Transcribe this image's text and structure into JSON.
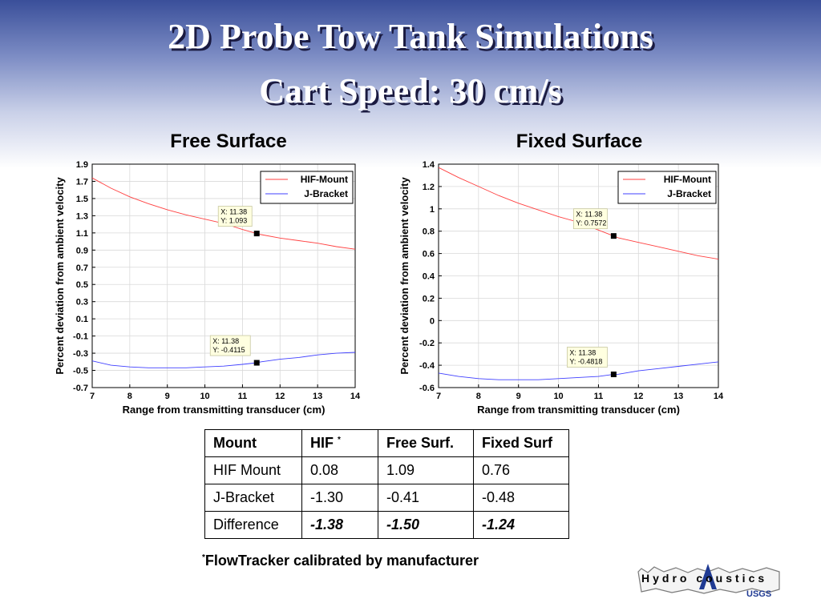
{
  "slide": {
    "title_line1": "2D Probe Tow Tank Simulations",
    "title_line2": "Cart Speed: 30 cm/s"
  },
  "chart_data": [
    {
      "type": "line",
      "title": "Free Surface",
      "xlabel": "Range from transmitting transducer (cm)",
      "ylabel": "Percent deviation from ambient velocity",
      "xlim": [
        7,
        14
      ],
      "ylim": [
        -0.7,
        1.9
      ],
      "xticks": [
        7,
        8,
        9,
        10,
        11,
        12,
        13,
        14
      ],
      "yticks": [
        -0.7,
        -0.5,
        -0.3,
        -0.1,
        0.1,
        0.3,
        0.5,
        0.7,
        0.9,
        1.1,
        1.3,
        1.5,
        1.7,
        1.9
      ],
      "ytick_labels": [
        "-0.7",
        "-0.5",
        "-0.3",
        "-0.1",
        "0.1",
        "0.3",
        "0.5",
        "0.7",
        "0.9",
        "1.1",
        "1.3",
        "1.5",
        "1.7",
        "1.9"
      ],
      "grid": true,
      "legend": "top-right",
      "series": [
        {
          "name": "HIF-Mount",
          "color": "#ff4040",
          "x": [
            7,
            7.5,
            8,
            8.5,
            9,
            9.5,
            10,
            10.5,
            11,
            11.38,
            11.5,
            12,
            12.5,
            13,
            13.5,
            14
          ],
          "y": [
            1.74,
            1.62,
            1.52,
            1.44,
            1.37,
            1.31,
            1.26,
            1.21,
            1.14,
            1.093,
            1.08,
            1.04,
            1.01,
            0.98,
            0.94,
            0.91
          ]
        },
        {
          "name": "J-Bracket",
          "color": "#4040ff",
          "x": [
            7,
            7.5,
            8,
            8.5,
            9,
            9.5,
            10,
            10.5,
            11,
            11.38,
            11.5,
            12,
            12.5,
            13,
            13.5,
            14
          ],
          "y": [
            -0.39,
            -0.44,
            -0.46,
            -0.47,
            -0.47,
            -0.47,
            -0.46,
            -0.45,
            -0.43,
            -0.4115,
            -0.4,
            -0.37,
            -0.35,
            -0.32,
            -0.3,
            -0.29
          ]
        }
      ],
      "annotations": [
        {
          "x": 11.38,
          "y": 1.093,
          "line1": "X: 11.38",
          "line2": "Y: 1.093"
        },
        {
          "x": 11.38,
          "y": -0.4115,
          "line1": "X: 11.38",
          "line2": "Y: -0.4115"
        }
      ]
    },
    {
      "type": "line",
      "title": "Fixed Surface",
      "xlabel": "Range from transmitting transducer (cm)",
      "ylabel": "Percent deviation from ambient velocity",
      "xlim": [
        7,
        14
      ],
      "ylim": [
        -0.6,
        1.4
      ],
      "xticks": [
        7,
        8,
        9,
        10,
        11,
        12,
        13,
        14
      ],
      "yticks": [
        -0.6,
        -0.4,
        -0.2,
        0,
        0.2,
        0.4,
        0.6,
        0.8,
        1,
        1.2,
        1.4
      ],
      "ytick_labels": [
        "-0.6",
        "-0.4",
        "-0.2",
        "0",
        "0.2",
        "0.4",
        "0.6",
        "0.8",
        "1",
        "1.2",
        "1.4"
      ],
      "grid": true,
      "legend": "top-right",
      "series": [
        {
          "name": "HIF-Mount",
          "color": "#ff4040",
          "x": [
            7,
            7.5,
            8,
            8.5,
            9,
            9.5,
            10,
            10.5,
            11,
            11.38,
            11.5,
            12,
            12.5,
            13,
            13.5,
            14
          ],
          "y": [
            1.37,
            1.28,
            1.2,
            1.12,
            1.05,
            0.99,
            0.93,
            0.88,
            0.81,
            0.7572,
            0.74,
            0.7,
            0.66,
            0.62,
            0.58,
            0.55
          ]
        },
        {
          "name": "J-Bracket",
          "color": "#4040ff",
          "x": [
            7,
            7.5,
            8,
            8.5,
            9,
            9.5,
            10,
            10.5,
            11,
            11.38,
            11.5,
            12,
            12.5,
            13,
            13.5,
            14
          ],
          "y": [
            -0.47,
            -0.5,
            -0.52,
            -0.53,
            -0.53,
            -0.53,
            -0.52,
            -0.51,
            -0.5,
            -0.4818,
            -0.48,
            -0.45,
            -0.43,
            -0.41,
            -0.39,
            -0.37
          ]
        }
      ],
      "annotations": [
        {
          "x": 11.38,
          "y": 0.7572,
          "line1": "X: 11.38",
          "line2": "Y: 0.7572"
        },
        {
          "x": 11.38,
          "y": -0.4818,
          "line1": "X: 11.38",
          "line2": "Y: -0.4818"
        }
      ]
    }
  ],
  "table": {
    "headers": [
      "Mount",
      "HIF",
      "Free Surf.",
      "Fixed Surf"
    ],
    "header_marker": "*",
    "rows": [
      [
        "HIF Mount",
        "0.08",
        "1.09",
        "0.76"
      ],
      [
        "J-Bracket",
        "-1.30",
        "-0.41",
        "-0.48"
      ],
      [
        "Difference",
        "-1.38",
        "-1.50",
        "-1.24"
      ]
    ]
  },
  "footnote": {
    "marker": "*",
    "text": "FlowTracker calibrated by manufacturer"
  },
  "logo": {
    "text": "Hydro coustics",
    "sub": "USGS"
  }
}
